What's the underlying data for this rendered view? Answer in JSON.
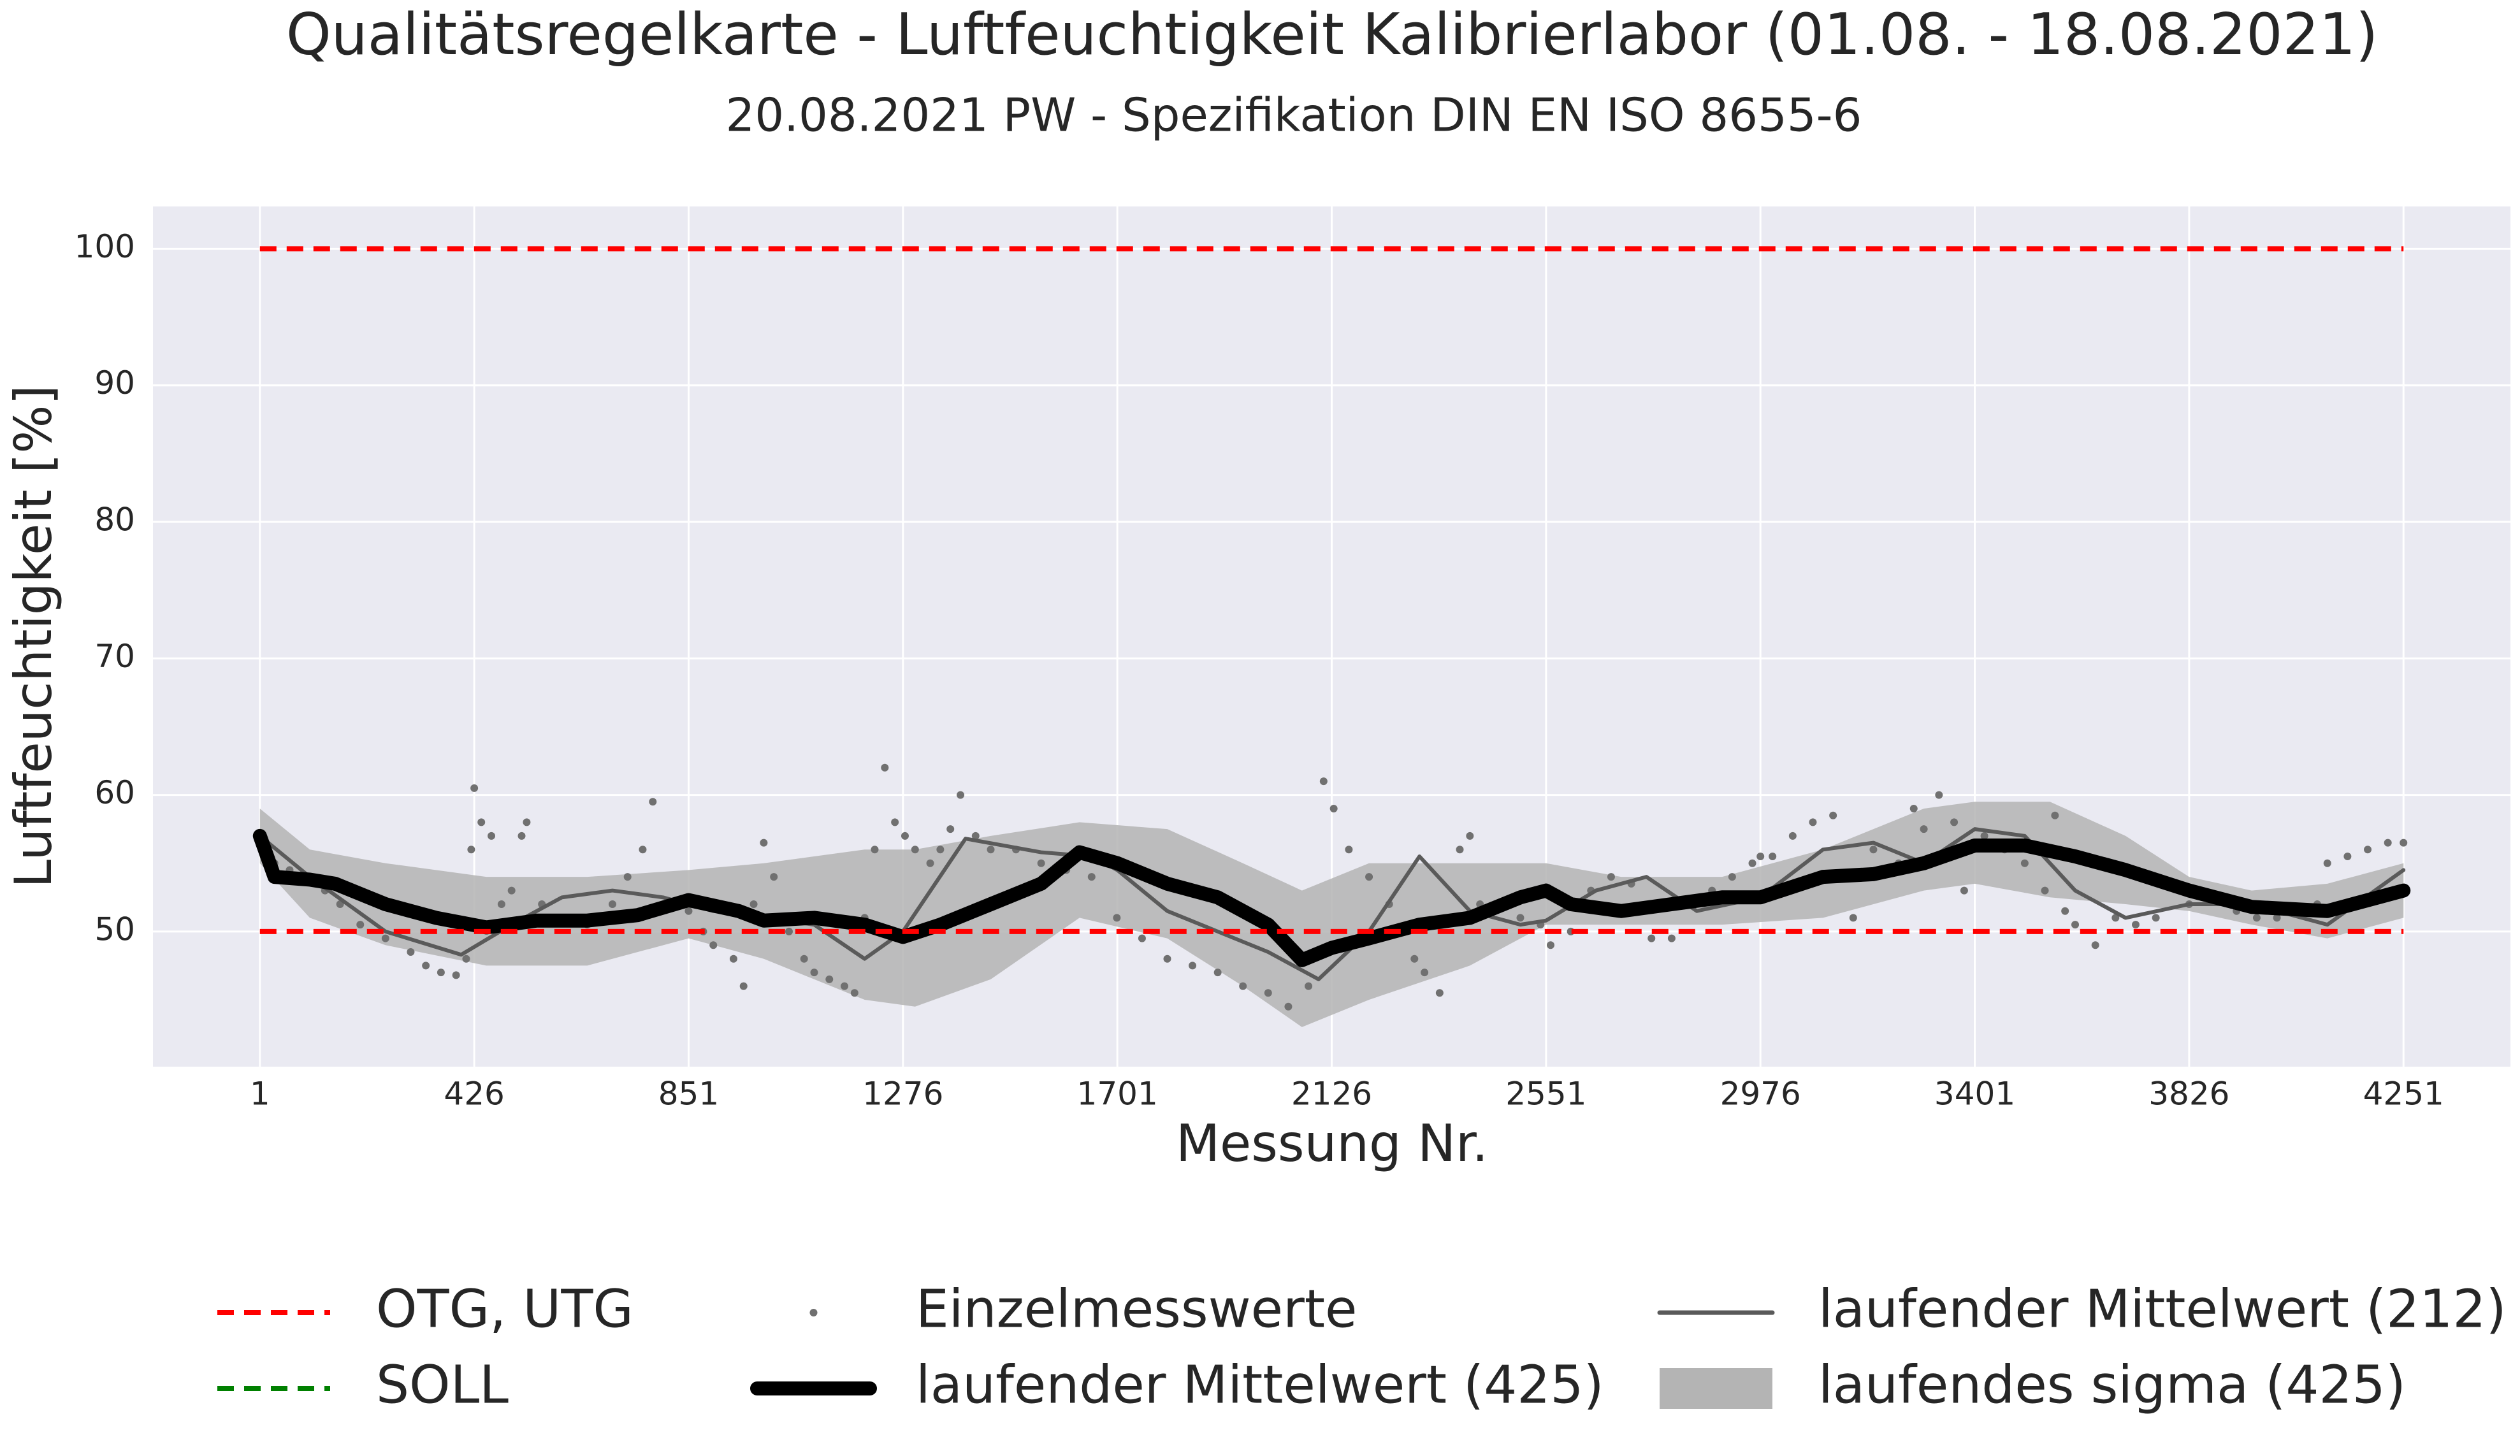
{
  "chart_data": {
    "type": "control",
    "title": "Qualitätsregelkarte - Luftfeuchtigkeit Kalibrierlabor (01.08. - 18.08.2021)",
    "subtitle": "20.08.2021 PW - Spezifikation DIN EN ISO 8655-6",
    "x_label": "Messung Nr.",
    "y_label": "Luftfeuchtigkeit [%]",
    "xlim": [
      -211,
      4463
    ],
    "ylim": [
      40.1,
      103.1
    ],
    "xticks": [
      1,
      426,
      851,
      1276,
      1701,
      2126,
      2551,
      2976,
      3401,
      3826,
      4251
    ],
    "yticks": [
      50,
      60,
      70,
      80,
      90,
      100
    ],
    "grid": true,
    "series": [
      {
        "name": "OTG, UTG",
        "color": "#ff0000",
        "style": "dashed",
        "x": [
          1,
          4251
        ],
        "levels": [
          100,
          50
        ]
      },
      {
        "name": "SOLL",
        "color": "#008000",
        "style": "dashed",
        "x": [
          1,
          4251
        ],
        "levels": []
      },
      {
        "name": "Einzelmesswerte",
        "color": "#707070",
        "style": "dots",
        "x": [
          1,
          10,
          30,
          60,
          100,
          130,
          160,
          200,
          250,
          300,
          330,
          360,
          390,
          410,
          420,
          426,
          440,
          460,
          480,
          500,
          520,
          530,
          560,
          600,
          650,
          700,
          730,
          760,
          780,
          820,
          851,
          880,
          900,
          940,
          960,
          980,
          1000,
          1020,
          1050,
          1080,
          1100,
          1130,
          1160,
          1180,
          1200,
          1220,
          1240,
          1260,
          1280,
          1300,
          1330,
          1350,
          1370,
          1390,
          1420,
          1450,
          1500,
          1550,
          1600,
          1650,
          1700,
          1750,
          1800,
          1850,
          1900,
          1950,
          2000,
          2040,
          2080,
          2110,
          2130,
          2160,
          2200,
          2240,
          2260,
          2290,
          2310,
          2340,
          2380,
          2400,
          2420,
          2450,
          2500,
          2540,
          2560,
          2600,
          2640,
          2680,
          2720,
          2760,
          2800,
          2840,
          2880,
          2920,
          2960,
          2976,
          3000,
          3040,
          3080,
          3120,
          3160,
          3200,
          3250,
          3280,
          3300,
          3330,
          3360,
          3380,
          3420,
          3460,
          3500,
          3540,
          3560,
          3580,
          3600,
          3640,
          3680,
          3720,
          3760,
          3826,
          3880,
          3920,
          3960,
          4000,
          4040,
          4080,
          4100,
          4140,
          4180,
          4220,
          4251
        ],
        "values": [
          57,
          56,
          55,
          54.5,
          54,
          53,
          52,
          50.5,
          49.5,
          48.5,
          47.5,
          47,
          46.8,
          48,
          56,
          60.5,
          58,
          57,
          52,
          53,
          57,
          58,
          52,
          51,
          50.5,
          52,
          54,
          56,
          59.5,
          52,
          51.5,
          50,
          49,
          48,
          46,
          52,
          56.5,
          54,
          50,
          48,
          47,
          46.5,
          46,
          45.5,
          51,
          56,
          62,
          58,
          57,
          56,
          55,
          56,
          57.5,
          60,
          57,
          56,
          56,
          55,
          54.5,
          54,
          51,
          49.5,
          48,
          47.5,
          47,
          46,
          45.5,
          44.5,
          46,
          61,
          59,
          56,
          54,
          52,
          50,
          48,
          47,
          45.5,
          56,
          57,
          52,
          51.5,
          51,
          50.5,
          49,
          50,
          53,
          54,
          53.5,
          49.5,
          49.5,
          52,
          53,
          54,
          55,
          55.5,
          55.5,
          57,
          58,
          58.5,
          51,
          56,
          55,
          59,
          57.5,
          60,
          58,
          53,
          57,
          56,
          55,
          53,
          58.5,
          51.5,
          50.5,
          49,
          51,
          50.5,
          51,
          52,
          52.5,
          51.5,
          51,
          51,
          51.5,
          52,
          55,
          55.5,
          56,
          56.5,
          56.5
        ]
      },
      {
        "name": "laufender Mittelwert (425)",
        "color": "#000000",
        "style": "thick",
        "x": [
          1,
          30,
          100,
          150,
          250,
          350,
          450,
          550,
          650,
          750,
          851,
          950,
          1000,
          1100,
          1200,
          1276,
          1350,
          1450,
          1550,
          1626,
          1701,
          1800,
          1900,
          2000,
          2067,
          2126,
          2200,
          2300,
          2400,
          2500,
          2551,
          2600,
          2700,
          2800,
          2900,
          2976,
          3100,
          3200,
          3300,
          3401,
          3500,
          3600,
          3700,
          3826,
          3950,
          4100,
          4251
        ],
        "values": [
          57,
          54,
          53.8,
          53.5,
          52,
          51,
          50.3,
          50.8,
          50.8,
          51.2,
          52.3,
          51.5,
          50.8,
          51,
          50.5,
          49.6,
          50.5,
          52,
          53.5,
          55.8,
          55,
          53.5,
          52.5,
          50.5,
          47.9,
          48.8,
          49.5,
          50.5,
          51,
          52.5,
          53,
          52,
          51.5,
          52,
          52.5,
          52.5,
          54,
          54.2,
          55,
          56.3,
          56.3,
          55.5,
          54.5,
          53,
          51.8,
          51.5,
          53
        ]
      },
      {
        "name": "laufender Mittelwert (212)",
        "color": "#5a5a5a",
        "style": "line",
        "x": [
          1,
          100,
          250,
          400,
          500,
          600,
          700,
          800,
          900,
          1000,
          1100,
          1200,
          1276,
          1400,
          1550,
          1650,
          1701,
          1800,
          1900,
          2000,
          2100,
          2200,
          2300,
          2400,
          2500,
          2551,
          2650,
          2750,
          2850,
          2976,
          3100,
          3200,
          3300,
          3401,
          3500,
          3600,
          3700,
          3826,
          3950,
          4100,
          4251
        ],
        "values": [
          57,
          54,
          50,
          48.3,
          50.5,
          52.5,
          53,
          52.5,
          51.5,
          51,
          50.5,
          48,
          50,
          56.8,
          55.8,
          55.5,
          54.5,
          51.5,
          50,
          48.5,
          46.5,
          50,
          55.5,
          51.5,
          50.5,
          50.8,
          53,
          54,
          51.5,
          52.5,
          56,
          56.5,
          55,
          57.5,
          57,
          53,
          51,
          52,
          52,
          50.5,
          54.5
        ]
      },
      {
        "name": "laufendes sigma (425)",
        "color": "#b4b4b4",
        "style": "band",
        "x": [
          1,
          100,
          250,
          450,
          650,
          851,
          1000,
          1200,
          1300,
          1450,
          1626,
          1800,
          1950,
          2067,
          2200,
          2400,
          2551,
          2700,
          2900,
          3100,
          3300,
          3401,
          3550,
          3700,
          3826,
          3950,
          4100,
          4251
        ],
        "upper": [
          59,
          56,
          55,
          54,
          54,
          54.5,
          55,
          56,
          56,
          57,
          58,
          57.5,
          55,
          53,
          55,
          55,
          55,
          54,
          54,
          56,
          59,
          59.5,
          59.5,
          57,
          54,
          53,
          53.5,
          55
        ],
        "lower": [
          55,
          51,
          49,
          47.5,
          47.5,
          49.5,
          48,
          45,
          44.5,
          46.5,
          51,
          49.5,
          46,
          43,
          45,
          47.5,
          50.5,
          50.5,
          50.5,
          51,
          53,
          53.5,
          52.5,
          52,
          51.5,
          50.5,
          49.5,
          51
        ]
      }
    ]
  }
}
